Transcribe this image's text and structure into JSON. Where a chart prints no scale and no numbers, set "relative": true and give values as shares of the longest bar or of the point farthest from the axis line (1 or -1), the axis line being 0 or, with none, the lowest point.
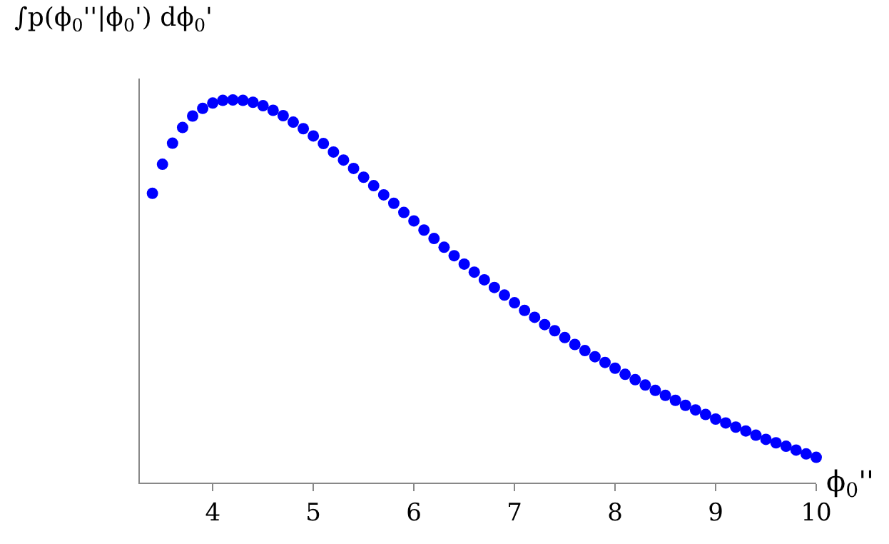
{
  "chart_data": {
    "type": "scatter",
    "xlabel": "ϕ$_{0}$''",
    "ylabel": "∫p(ϕ$_{0}$''|ϕ$_{0}$') dϕ$_{0}$'",
    "relative": true,
    "marker": "circle",
    "x": [
      3.4,
      3.5,
      3.6,
      3.7,
      3.8,
      3.9,
      4.0,
      4.1,
      4.2,
      4.3,
      4.4,
      4.5,
      4.6,
      4.7,
      4.8,
      4.9,
      5.0,
      5.1,
      5.2,
      5.3,
      5.4,
      5.5,
      5.6,
      5.7,
      5.8,
      5.9,
      6.0,
      6.1,
      6.2,
      6.3,
      6.4,
      6.5,
      6.6,
      6.7,
      6.8,
      6.9,
      7.0,
      7.1,
      7.2,
      7.3,
      7.4,
      7.5,
      7.6,
      7.7,
      7.8,
      7.9,
      8.0,
      8.1,
      8.2,
      8.3,
      8.4,
      8.5,
      8.6,
      8.7,
      8.8,
      8.9,
      9.0,
      9.1,
      9.2,
      9.3,
      9.4,
      9.5,
      9.6,
      9.7,
      9.8,
      9.9,
      10.0
    ],
    "series": [
      {
        "color": "#0000ff",
        "values": [
          0.756,
          0.832,
          0.887,
          0.928,
          0.958,
          0.978,
          0.992,
          0.999,
          1.0,
          0.999,
          0.994,
          0.985,
          0.973,
          0.959,
          0.942,
          0.925,
          0.906,
          0.886,
          0.864,
          0.843,
          0.821,
          0.798,
          0.776,
          0.752,
          0.73,
          0.706,
          0.684,
          0.66,
          0.638,
          0.615,
          0.593,
          0.571,
          0.55,
          0.53,
          0.51,
          0.49,
          0.47,
          0.45,
          0.432,
          0.413,
          0.397,
          0.379,
          0.361,
          0.345,
          0.329,
          0.314,
          0.299,
          0.283,
          0.269,
          0.255,
          0.241,
          0.228,
          0.215,
          0.202,
          0.19,
          0.178,
          0.166,
          0.156,
          0.145,
          0.135,
          0.124,
          0.113,
          0.104,
          0.095,
          0.085,
          0.075,
          0.066
        ]
      }
    ],
    "xlim": [
      3.275,
      10.0
    ],
    "xticks": [
      4,
      5,
      6,
      7,
      8,
      9,
      10
    ]
  }
}
